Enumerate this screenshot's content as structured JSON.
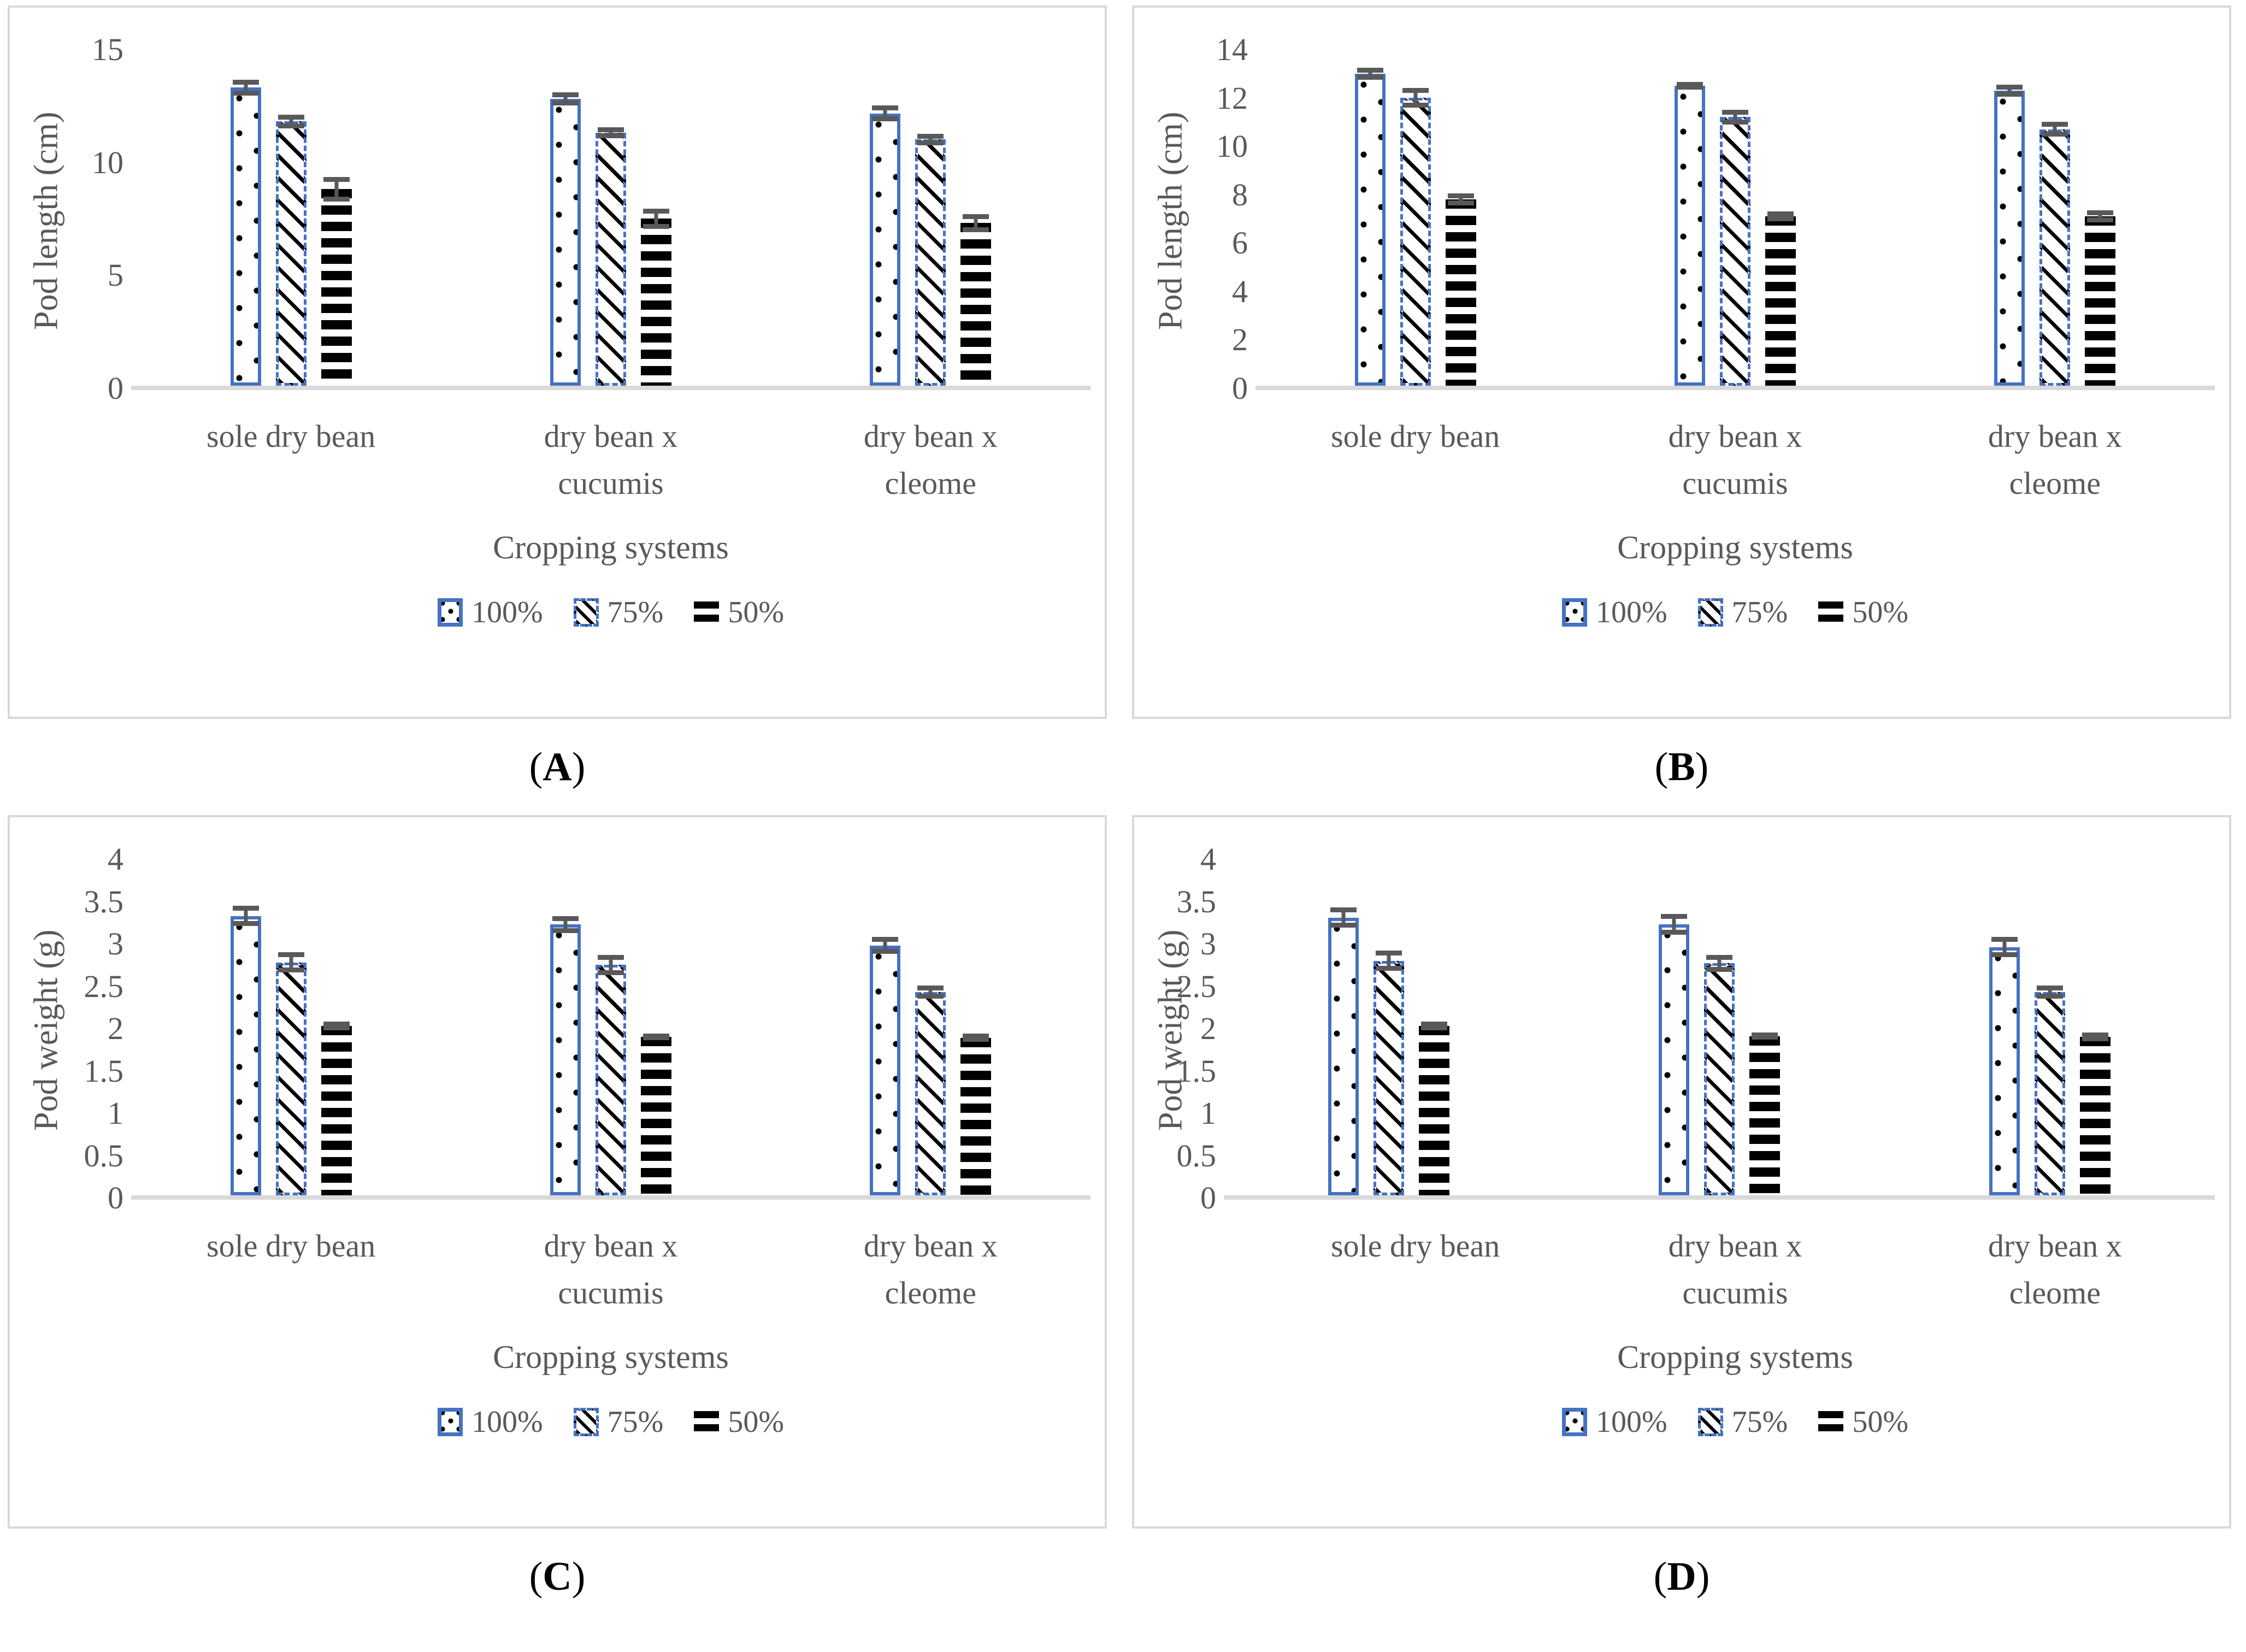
{
  "colors": {
    "bar_outline_blue": "#4472c4",
    "error_bar_gray": "#595959",
    "axis_text_gray": "#595959",
    "axis_line_gray": "#d9d9d9",
    "panel_border_gray": "#d9d9d9",
    "caption_black": "#000000"
  },
  "caption_format": {
    "open": "(",
    "close": ")"
  },
  "legend": {
    "items": [
      {
        "label": "100%",
        "pattern": "dots"
      },
      {
        "label": "75%",
        "pattern": "hatch"
      },
      {
        "label": "50%",
        "pattern": "stripes"
      }
    ]
  },
  "chart_data": [
    {
      "type": "bar",
      "caption": "A",
      "ylabel": "Pod length (cm)",
      "xlabel": "Cropping systems",
      "ylim": [
        0,
        15
      ],
      "yticks": [
        0,
        5,
        10,
        15
      ],
      "grid": false,
      "legend_position": "bottom",
      "categories": [
        "sole dry bean",
        "dry bean x cucumis",
        "dry bean x cleome"
      ],
      "series": [
        {
          "name": "100%",
          "values": [
            13.2,
            12.7,
            12.05
          ],
          "errors": [
            0.35,
            0.3,
            0.35
          ]
        },
        {
          "name": "75%",
          "values": [
            11.7,
            11.2,
            10.9
          ],
          "errors": [
            0.3,
            0.25,
            0.25
          ]
        },
        {
          "name": "50%",
          "values": [
            8.7,
            7.4,
            7.2
          ],
          "errors": [
            0.55,
            0.45,
            0.4
          ]
        }
      ]
    },
    {
      "type": "bar",
      "caption": "B",
      "ylabel": "Pod length (cm)",
      "xlabel": "Cropping systems",
      "ylim": [
        0,
        14
      ],
      "yticks": [
        0,
        2,
        4,
        6,
        8,
        10,
        12,
        14
      ],
      "grid": false,
      "legend_position": "bottom",
      "categories": [
        "sole dry bean",
        "dry bean x cucumis",
        "dry bean x cleome"
      ],
      "series": [
        {
          "name": "100%",
          "values": [
            12.9,
            12.4,
            12.2
          ],
          "errors": [
            0.25,
            0.15,
            0.25
          ]
        },
        {
          "name": "75%",
          "values": [
            11.9,
            11.1,
            10.6
          ],
          "errors": [
            0.4,
            0.3,
            0.3
          ]
        },
        {
          "name": "50%",
          "values": [
            7.7,
            7.0,
            7.0
          ],
          "errors": [
            0.25,
            0.2,
            0.25
          ]
        }
      ]
    },
    {
      "type": "bar",
      "caption": "C",
      "ylabel": "Pod weight (g)",
      "xlabel": "Cropping systems",
      "ylim": [
        0,
        4
      ],
      "yticks": [
        0,
        0.5,
        1,
        1.5,
        2,
        2.5,
        3,
        3.5,
        4
      ],
      "grid": false,
      "legend_position": "bottom",
      "categories": [
        "sole dry bean",
        "dry bean x cucumis",
        "dry bean x cleome"
      ],
      "series": [
        {
          "name": "100%",
          "values": [
            3.3,
            3.2,
            2.95
          ],
          "errors": [
            0.12,
            0.1,
            0.1
          ]
        },
        {
          "name": "75%",
          "values": [
            2.75,
            2.72,
            2.4
          ],
          "errors": [
            0.12,
            0.12,
            0.08
          ]
        },
        {
          "name": "50%",
          "values": [
            2.0,
            1.87,
            1.86
          ],
          "errors": [
            0.05,
            0.04,
            0.05
          ]
        }
      ]
    },
    {
      "type": "bar",
      "caption": "D",
      "ylabel": "Pod weight (g)",
      "xlabel": "Cropping systems",
      "ylim": [
        0,
        4
      ],
      "yticks": [
        0,
        0.5,
        1,
        1.5,
        2,
        2.5,
        3,
        3.5,
        4
      ],
      "grid": false,
      "legend_position": "bottom",
      "categories": [
        "sole dry bean",
        "dry bean x cucumis",
        "dry bean x cleome"
      ],
      "series": [
        {
          "name": "100%",
          "values": [
            3.28,
            3.2,
            2.93
          ],
          "errors": [
            0.12,
            0.12,
            0.12
          ]
        },
        {
          "name": "75%",
          "values": [
            2.77,
            2.74,
            2.4
          ],
          "errors": [
            0.12,
            0.1,
            0.08
          ]
        },
        {
          "name": "50%",
          "values": [
            2.0,
            1.88,
            1.87
          ],
          "errors": [
            0.05,
            0.04,
            0.05
          ]
        }
      ]
    }
  ]
}
